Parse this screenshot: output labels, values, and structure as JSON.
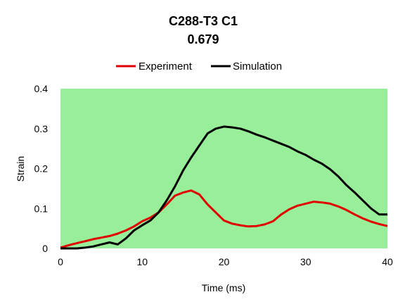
{
  "chart_data": {
    "type": "line",
    "title": "C288-T3 C1",
    "subtitle": "0.679",
    "xlabel": "Time (ms)",
    "ylabel": "Strain",
    "xlim": [
      0,
      40
    ],
    "ylim": [
      0,
      0.4
    ],
    "xticks": [
      0,
      10,
      20,
      30,
      40
    ],
    "yticks": [
      0,
      0.1,
      0.2,
      0.3,
      0.4
    ],
    "xtick_labels": [
      "0",
      "10",
      "20",
      "30",
      "40"
    ],
    "ytick_labels": [
      "0",
      "0.1",
      "0.2",
      "0.3",
      "0.4"
    ],
    "grid": false,
    "legend": "top",
    "plot_background": "#99ee99",
    "series": [
      {
        "name": "Experiment",
        "color": "#e00000",
        "x": [
          0,
          1,
          2,
          3,
          4,
          5,
          6,
          7,
          8,
          9,
          10,
          11,
          12,
          13,
          14,
          15,
          16,
          17,
          18,
          19,
          20,
          21,
          22,
          23,
          24,
          25,
          26,
          27,
          28,
          29,
          30,
          31,
          32,
          33,
          34,
          35,
          36,
          37,
          38,
          39,
          40
        ],
        "values": [
          0.002,
          0.008,
          0.013,
          0.018,
          0.023,
          0.027,
          0.031,
          0.037,
          0.045,
          0.055,
          0.068,
          0.077,
          0.09,
          0.11,
          0.132,
          0.14,
          0.145,
          0.135,
          0.11,
          0.09,
          0.07,
          0.062,
          0.058,
          0.055,
          0.056,
          0.06,
          0.068,
          0.085,
          0.098,
          0.107,
          0.112,
          0.117,
          0.115,
          0.112,
          0.105,
          0.096,
          0.085,
          0.075,
          0.067,
          0.061,
          0.056
        ]
      },
      {
        "name": "Simulation",
        "color": "#000000",
        "x": [
          0,
          1,
          2,
          3,
          4,
          5,
          6,
          7,
          8,
          9,
          10,
          11,
          12,
          13,
          14,
          15,
          16,
          17,
          18,
          19,
          20,
          21,
          22,
          23,
          24,
          25,
          26,
          27,
          28,
          29,
          30,
          31,
          32,
          33,
          34,
          35,
          36,
          37,
          38,
          39,
          40
        ],
        "values": [
          0.0,
          0.0,
          0.0,
          0.002,
          0.005,
          0.01,
          0.015,
          0.01,
          0.025,
          0.045,
          0.058,
          0.07,
          0.09,
          0.12,
          0.155,
          0.195,
          0.228,
          0.258,
          0.288,
          0.3,
          0.305,
          0.303,
          0.3,
          0.293,
          0.285,
          0.278,
          0.27,
          0.262,
          0.254,
          0.243,
          0.234,
          0.222,
          0.212,
          0.198,
          0.18,
          0.158,
          0.14,
          0.12,
          0.1,
          0.085,
          0.085
        ]
      }
    ]
  }
}
